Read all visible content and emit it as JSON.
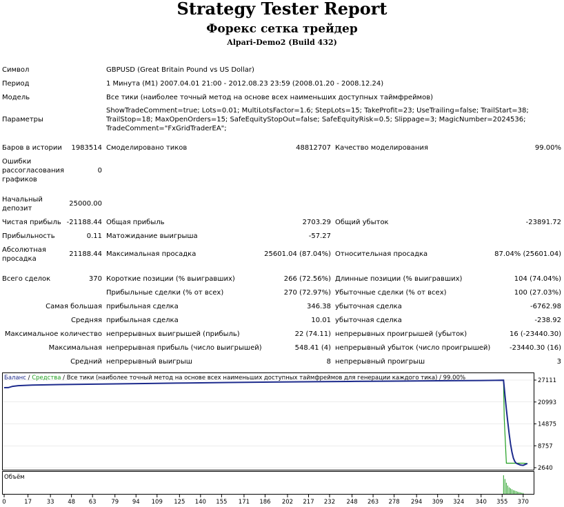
{
  "header": {
    "title": "Strategy Tester Report",
    "subtitle": "Форекс сетка трейдер",
    "build": "Alpari-Demo2 (Build 432)"
  },
  "info": {
    "symbol_label": "Символ",
    "symbol_value": "GBPUSD (Great Britain Pound vs US Dollar)",
    "period_label": "Период",
    "period_value": "1 Минута (M1) 2007.04.01 21:00 - 2012.08.23 23:59 (2008.01.20 - 2008.12.24)",
    "model_label": "Модель",
    "model_value": "Все тики (наиболее точный метод на основе всех наименьших доступных таймфреймов)",
    "params_label": "Параметры",
    "params_value": "ShowTradeComment=true; Lots=0.01; MultiLotsFactor=1.6; StepLots=15; TakeProfit=23; UseTrailing=false; TrailStart=38; TrailStop=18; MaxOpenOrders=15; SafeEquityStopOut=false; SafeEquityRisk=0.5; Slippage=3; MagicNumber=2024536; TradeComment=\"FxGridTraderEA\";"
  },
  "stats": {
    "bars_label": "Баров в истории",
    "bars_value": "1983514",
    "ticks_label": "Смоделировано тиков",
    "ticks_value": "48812707",
    "quality_label": "Качество моделирования",
    "quality_value": "99.00%",
    "errors_label": "Ошибки рассогласования графиков",
    "errors_value": "0",
    "deposit_label": "Начальный депозит",
    "deposit_value": "25000.00",
    "net_label": "Чистая прибыль",
    "net_value": "-21188.44",
    "gross_profit_label": "Общая прибыль",
    "gross_profit_value": "2703.29",
    "gross_loss_label": "Общий убыток",
    "gross_loss_value": "-23891.72",
    "pf_label": "Прибыльность",
    "pf_value": "0.11",
    "expected_label": "Матожидание выигрыша",
    "expected_value": "-57.27",
    "abs_dd_label": "Абсолютная просадка",
    "abs_dd_value": "21188.44",
    "max_dd_label": "Максимальная просадка",
    "max_dd_value": "25601.04 (87.04%)",
    "rel_dd_label": "Относительная просадка",
    "rel_dd_value": "87.04% (25601.04)",
    "total_trades_label": "Всего сделок",
    "total_trades_value": "370",
    "short_label": "Короткие позиции (% выигравших)",
    "short_value": "266 (72.56%)",
    "long_label": "Длинные позиции (% выигравших)",
    "long_value": "104 (74.04%)",
    "profit_trades_label": "Прибыльные сделки (% от всех)",
    "profit_trades_value": "270 (72.97%)",
    "loss_trades_label": "Убыточные сделки (% от всех)",
    "loss_trades_value": "100 (27.03%)",
    "largest_label": "Самая большая",
    "largest_profit_label": "прибыльная сделка",
    "largest_profit_value": "346.38",
    "largest_loss_label": "убыточная сделка",
    "largest_loss_value": "-6762.98",
    "average_label": "Средняя",
    "average_profit_label": "прибыльная сделка",
    "average_profit_value": "10.01",
    "average_loss_label": "убыточная сделка",
    "average_loss_value": "-238.92",
    "max_count_label": "Максимальное количество",
    "max_consec_wins_label": "непрерывных выигрышей (прибыль)",
    "max_consec_wins_value": "22 (74.11)",
    "max_consec_losses_label": "непрерывных проигрышей (убыток)",
    "max_consec_losses_value": "16 (-23440.30)",
    "maximal_label": "Максимальная",
    "maximal_profit_label": "непрерывная прибыль (число выигрышей)",
    "maximal_profit_value": "548.41 (4)",
    "maximal_loss_label": "непрерывный убыток (число проигрышей)",
    "maximal_loss_value": "-23440.30 (16)",
    "avg_consec_label": "Средний",
    "avg_consec_wins_label": "непрерывный выигрыш",
    "avg_consec_wins_value": "8",
    "avg_consec_losses_label": "непрерывный проигрыш",
    "avg_consec_losses_value": "3"
  },
  "chart_data": {
    "type": "line",
    "legend": {
      "balance": "Баланс",
      "sep1": " / ",
      "equity": "Средства",
      "rest": " / Все тики (наиболее точный метод на основе всех наименьших доступных таймфреймов для генерации каждого тика) / 99.00%"
    },
    "volume_label": "Объём",
    "ylim": [
      2640,
      27111
    ],
    "xlim": [
      0,
      376
    ],
    "y_ticks": [
      27111,
      20993,
      14875,
      8757,
      2640
    ],
    "x_ticks": [
      0,
      17,
      33,
      48,
      63,
      79,
      94,
      109,
      125,
      140,
      155,
      171,
      186,
      202,
      217,
      232,
      248,
      263,
      278,
      294,
      309,
      324,
      340,
      355,
      370
    ],
    "colors": {
      "balance": "#1c2a8c",
      "equity": "#1e9e1e",
      "volume": "#1e9e1e"
    },
    "series": [
      {
        "name": "Баланс",
        "x": [
          0,
          3,
          6,
          10,
          20,
          40,
          70,
          100,
          130,
          160,
          190,
          220,
          250,
          280,
          310,
          340,
          350,
          356,
          357,
          358,
          359,
          360,
          361,
          362,
          363,
          364,
          365,
          366,
          368,
          370,
          373
        ],
        "values": [
          25000,
          25020,
          25350,
          25550,
          25700,
          25850,
          26000,
          26150,
          26300,
          26430,
          26550,
          26650,
          26740,
          26830,
          26910,
          26990,
          27030,
          27080,
          23000,
          19000,
          15500,
          12200,
          9200,
          7000,
          5300,
          4400,
          3900,
          3700,
          3400,
          3300,
          3812
        ]
      },
      {
        "name": "Средства",
        "x": [
          0,
          3,
          6,
          10,
          20,
          40,
          70,
          100,
          130,
          160,
          190,
          220,
          250,
          280,
          310,
          340,
          350,
          356,
          356.5,
          358,
          362,
          366,
          370,
          373
        ],
        "values": [
          25000,
          25020,
          25350,
          25550,
          25700,
          25850,
          26000,
          26150,
          26300,
          26430,
          26550,
          26650,
          26740,
          26830,
          26910,
          26990,
          27030,
          27080,
          16500,
          3900,
          3900,
          3900,
          3900,
          3812
        ]
      }
    ],
    "volume": {
      "x": [
        356,
        357,
        358,
        359,
        360,
        361,
        362,
        363,
        364,
        365,
        366,
        367,
        368,
        369,
        370
      ],
      "values": [
        1.0,
        0.8,
        0.6,
        0.45,
        0.35,
        0.3,
        0.25,
        0.2,
        0.18,
        0.15,
        0.12,
        0.1,
        0.08,
        0.06,
        0.05
      ]
    }
  }
}
